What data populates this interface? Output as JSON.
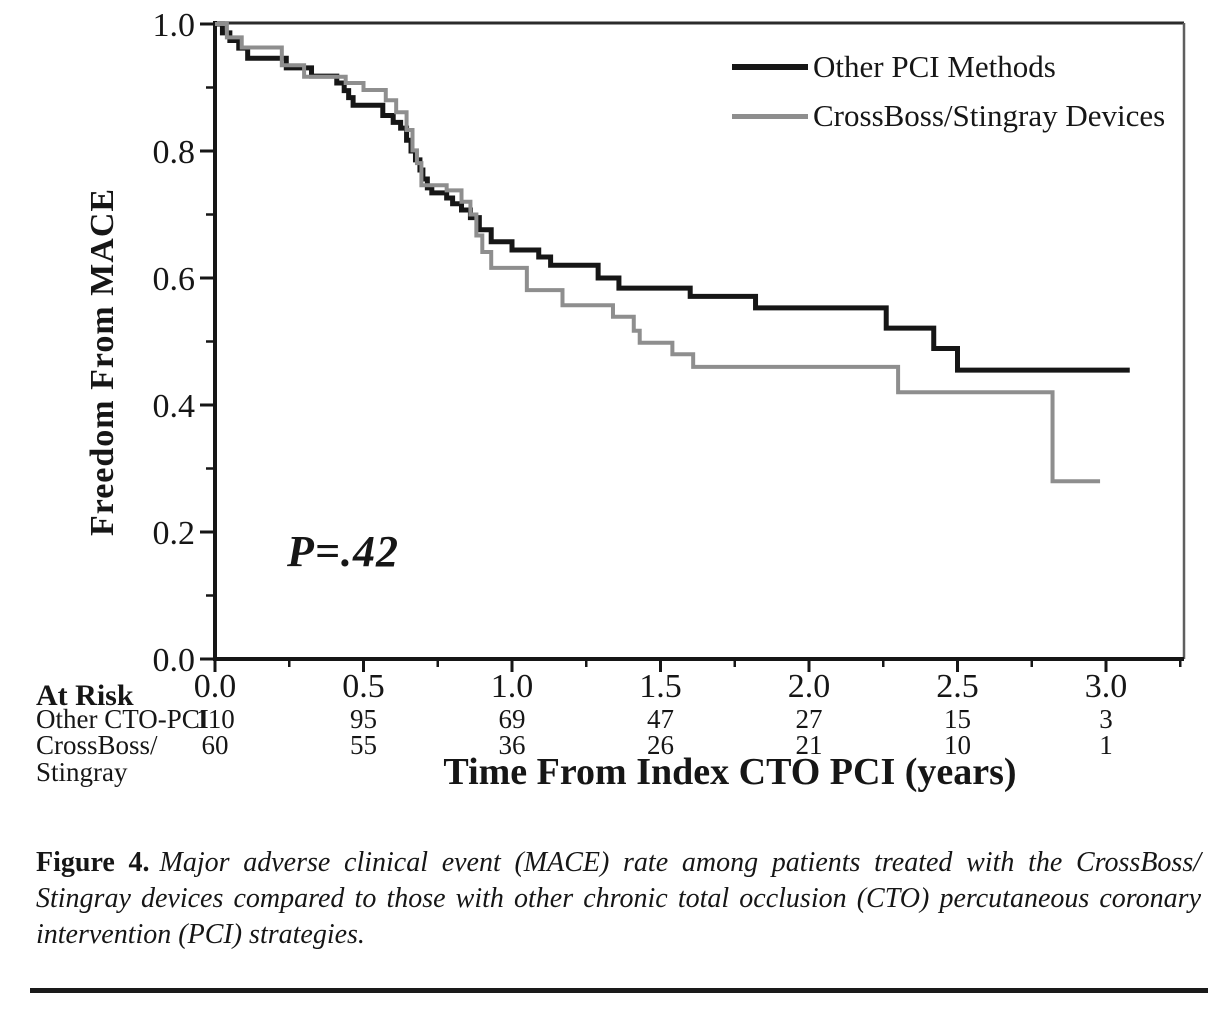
{
  "chart_data": {
    "type": "line",
    "subtype": "kaplan-meier-step",
    "title": "",
    "xlabel": "Time From Index CTO PCI (years)",
    "ylabel": "Freedom From MACE",
    "annotation": "P=.42",
    "xlim": [
      0,
      3.26
    ],
    "ylim": [
      0,
      1.0
    ],
    "x_ticks": [
      0.0,
      0.5,
      1.0,
      1.5,
      2.0,
      2.5,
      3.0
    ],
    "x_minor_ticks": [
      0.25,
      0.75,
      1.25,
      1.75,
      2.25,
      2.75,
      3.25
    ],
    "y_ticks": [
      0.0,
      0.2,
      0.4,
      0.6,
      0.8,
      1.0
    ],
    "y_minor_ticks": [
      0.1,
      0.3,
      0.5,
      0.7,
      0.9
    ],
    "grid": false,
    "legend_position": "top-right-inside",
    "series": [
      {
        "name": "Other PCI Methods",
        "color": "#161616",
        "width": 5,
        "end": 3.08,
        "steps": [
          [
            0.0,
            1.0
          ],
          [
            0.025,
            0.986
          ],
          [
            0.05,
            0.974
          ],
          [
            0.08,
            0.962
          ],
          [
            0.11,
            0.946
          ],
          [
            0.24,
            0.931
          ],
          [
            0.325,
            0.918
          ],
          [
            0.41,
            0.907
          ],
          [
            0.435,
            0.895
          ],
          [
            0.45,
            0.884
          ],
          [
            0.465,
            0.872
          ],
          [
            0.565,
            0.856
          ],
          [
            0.6,
            0.845
          ],
          [
            0.625,
            0.836
          ],
          [
            0.645,
            0.817
          ],
          [
            0.66,
            0.8
          ],
          [
            0.675,
            0.786
          ],
          [
            0.69,
            0.77
          ],
          [
            0.7,
            0.756
          ],
          [
            0.715,
            0.742
          ],
          [
            0.73,
            0.734
          ],
          [
            0.78,
            0.726
          ],
          [
            0.8,
            0.717
          ],
          [
            0.83,
            0.707
          ],
          [
            0.86,
            0.695
          ],
          [
            0.89,
            0.676
          ],
          [
            0.93,
            0.657
          ],
          [
            1.0,
            0.644
          ],
          [
            1.09,
            0.633
          ],
          [
            1.13,
            0.62
          ],
          [
            1.29,
            0.6
          ],
          [
            1.36,
            0.584
          ],
          [
            1.6,
            0.571
          ],
          [
            1.82,
            0.553
          ],
          [
            2.26,
            0.521
          ],
          [
            2.42,
            0.489
          ],
          [
            2.5,
            0.455
          ]
        ]
      },
      {
        "name": "CrossBoss/Stingray Devices",
        "color": "#8e8e8e",
        "width": 4,
        "end": 2.98,
        "steps": [
          [
            0.0,
            1.0
          ],
          [
            0.04,
            0.979
          ],
          [
            0.09,
            0.963
          ],
          [
            0.225,
            0.935
          ],
          [
            0.3,
            0.917
          ],
          [
            0.44,
            0.907
          ],
          [
            0.5,
            0.896
          ],
          [
            0.575,
            0.88
          ],
          [
            0.61,
            0.861
          ],
          [
            0.645,
            0.833
          ],
          [
            0.665,
            0.801
          ],
          [
            0.68,
            0.781
          ],
          [
            0.695,
            0.746
          ],
          [
            0.78,
            0.738
          ],
          [
            0.83,
            0.72
          ],
          [
            0.86,
            0.7
          ],
          [
            0.88,
            0.667
          ],
          [
            0.9,
            0.641
          ],
          [
            0.93,
            0.616
          ],
          [
            1.05,
            0.581
          ],
          [
            1.17,
            0.557
          ],
          [
            1.34,
            0.539
          ],
          [
            1.41,
            0.517
          ],
          [
            1.43,
            0.498
          ],
          [
            1.54,
            0.48
          ],
          [
            1.61,
            0.46
          ],
          [
            2.3,
            0.42
          ],
          [
            2.82,
            0.28
          ]
        ]
      }
    ]
  },
  "at_risk": {
    "header": "At Risk",
    "times": [
      0.0,
      0.5,
      1.0,
      1.5,
      2.0,
      2.5,
      3.0
    ],
    "rows": [
      {
        "label": "Other CTO-PCI",
        "label2": "",
        "values": [
          110,
          95,
          69,
          47,
          27,
          15,
          3
        ]
      },
      {
        "label": "CrossBoss/",
        "label2": "Stingray",
        "values": [
          60,
          55,
          36,
          26,
          21,
          10,
          1
        ]
      }
    ]
  },
  "caption": {
    "prefix": "Figure 4.",
    "body": "Major adverse clinical event (MACE) rate among patients treated with the CrossBoss/ Stingray devices compared to those with other chronic total occlusion (CTO) percutaneous coronary intervention (PCI) strategies."
  }
}
